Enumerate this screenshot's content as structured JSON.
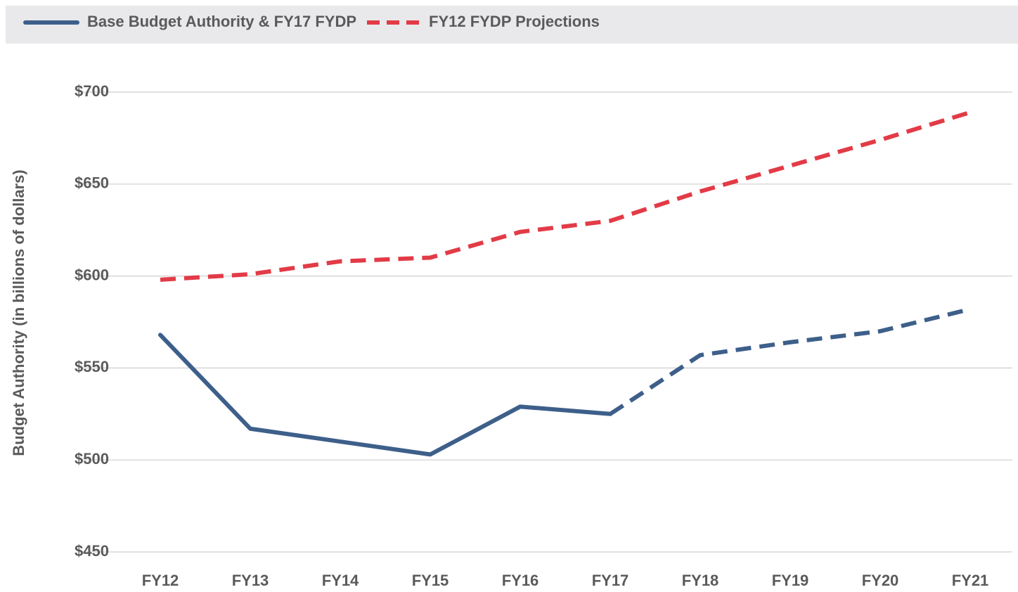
{
  "chart_data": {
    "type": "line",
    "y_label": "Budget Authority (in billions of dollars)",
    "categories": [
      "FY12",
      "FY13",
      "FY14",
      "FY15",
      "FY16",
      "FY17",
      "FY18",
      "FY19",
      "FY20",
      "FY21"
    ],
    "series": [
      {
        "name": "Base Budget Authority & FY17 FYDP",
        "color": "#3d5f8a",
        "dashed_from": 5,
        "values": [
          568,
          517,
          510,
          503,
          529,
          525,
          557,
          564,
          570,
          582
        ]
      },
      {
        "name": "FY12 FYDP Projections",
        "color": "#e23b47",
        "dashed_from": 0,
        "values": [
          598,
          601,
          608,
          610,
          624,
          630,
          646,
          660,
          674,
          689
        ]
      }
    ],
    "ylim": [
      450,
      700
    ],
    "yticks": [
      {
        "value": 450,
        "label": "$450"
      },
      {
        "value": 500,
        "label": "$500"
      },
      {
        "value": 550,
        "label": "$550"
      },
      {
        "value": 600,
        "label": "$600"
      },
      {
        "value": 650,
        "label": "$650"
      },
      {
        "value": 700,
        "label": "$700"
      }
    ],
    "grid": true,
    "legend": "top"
  }
}
